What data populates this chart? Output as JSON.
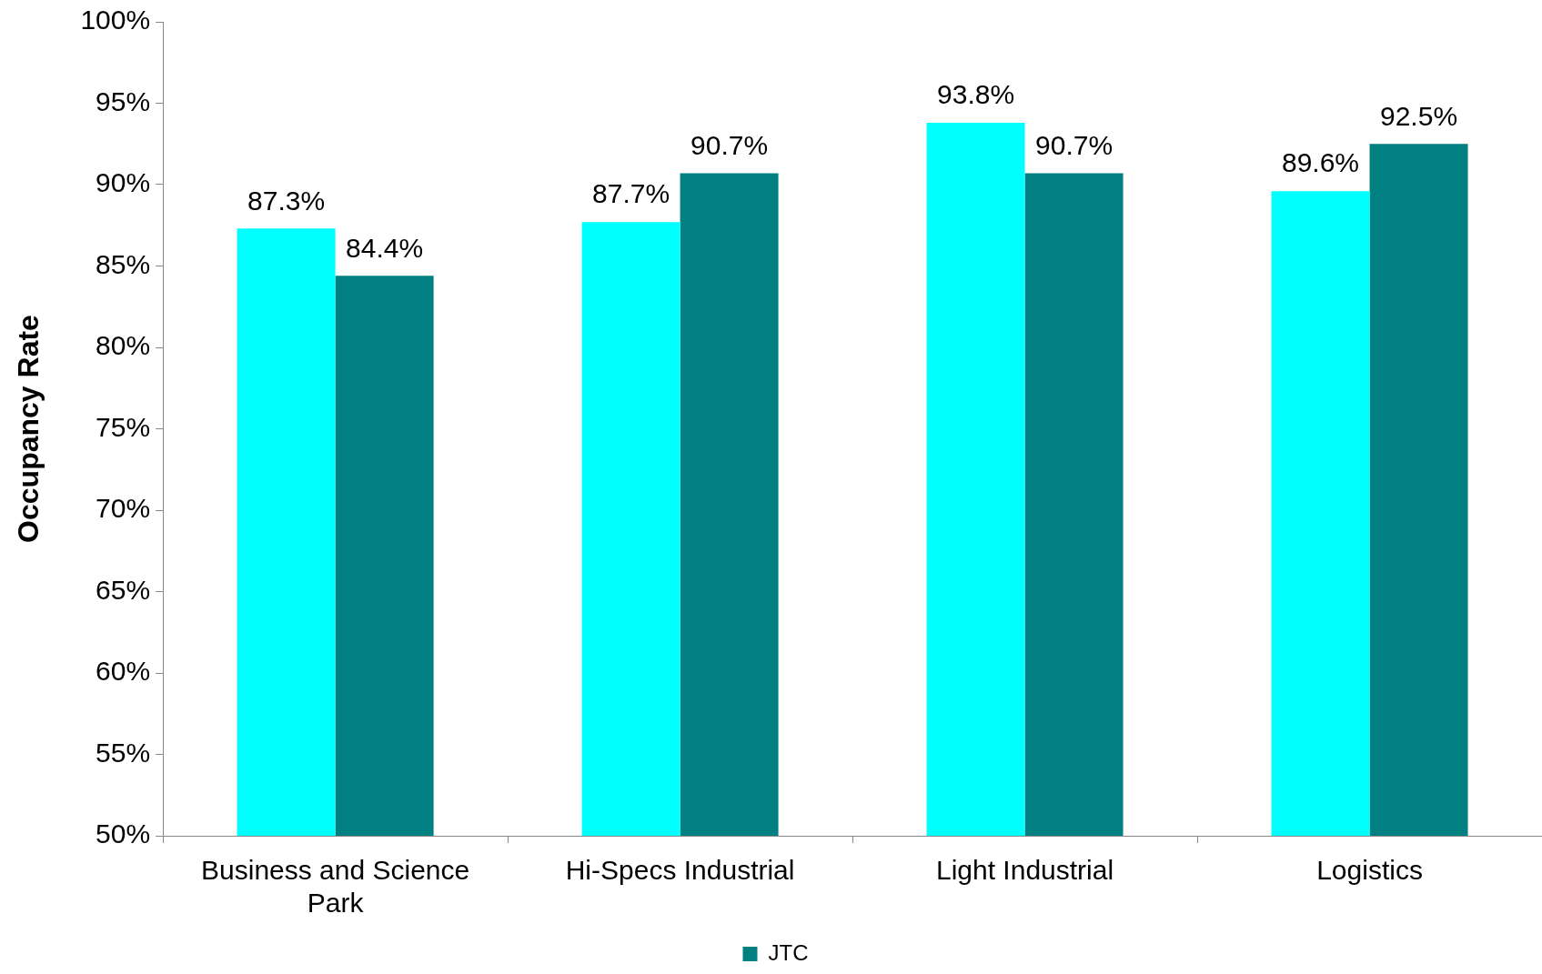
{
  "chart_data": {
    "type": "bar",
    "ylabel": "Occupancy Rate",
    "categories": [
      "Business and Science Park",
      "Hi-Specs Industrial",
      "Light Industrial",
      "Logistics"
    ],
    "series": [
      {
        "color": "#00ffff",
        "values": [
          87.3,
          87.7,
          93.8,
          89.6
        ],
        "value_labels": [
          "87.3%",
          "87.7%",
          "93.8%",
          "89.6%"
        ]
      },
      {
        "name": "JTC",
        "color": "#008080",
        "values": [
          84.4,
          90.7,
          90.7,
          92.5
        ],
        "value_labels": [
          "84.4%",
          "90.7%",
          "90.7%",
          "92.5%"
        ]
      }
    ],
    "ylim": [
      50,
      100
    ],
    "yticks": [
      {
        "value": 50,
        "label": "50%"
      },
      {
        "value": 55,
        "label": "55%"
      },
      {
        "value": 60,
        "label": "60%"
      },
      {
        "value": 65,
        "label": "65%"
      },
      {
        "value": 70,
        "label": "70%"
      },
      {
        "value": 75,
        "label": "75%"
      },
      {
        "value": 80,
        "label": "80%"
      },
      {
        "value": 85,
        "label": "85%"
      },
      {
        "value": 90,
        "label": "90%"
      },
      {
        "value": 95,
        "label": "95%"
      },
      {
        "value": 100,
        "label": "100%"
      }
    ],
    "legend": "bottom",
    "grid": false
  }
}
